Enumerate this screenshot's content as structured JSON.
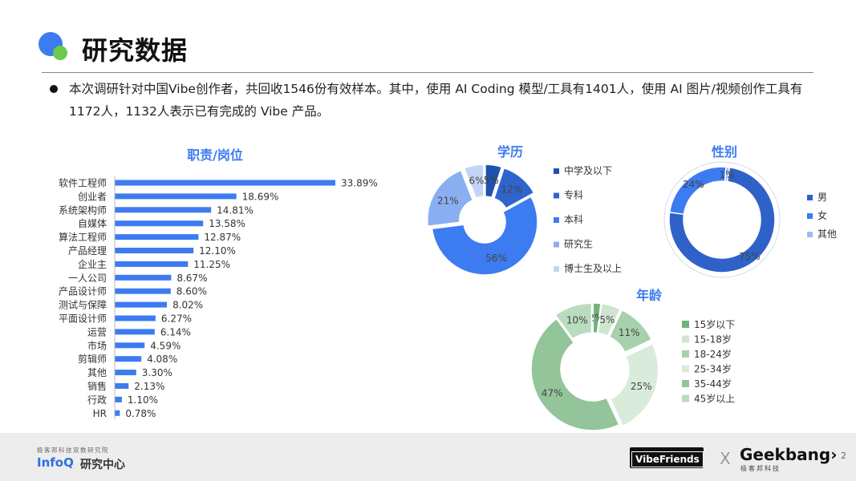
{
  "page": {
    "title": "研究数据",
    "summary": "本次调研针对中国Vibe创作者，共回收1546份有效样本。其中，使用 AI Coding 模型/工具有1401人，使用 AI 图片/视频创作工具有1172人，1132人表示已有完成的 Vibe 产品。",
    "page_number": "2"
  },
  "footer": {
    "infoq_tagline": "极客邦科技双数研究院",
    "infoq_brand": "InfoQ",
    "infoq_suffix": "研究中心",
    "vibe_badge": "VibeFriends",
    "x_mark": "X",
    "geekbang_brand": "Geekbang›",
    "geekbang_sub": "极客邦科技"
  },
  "colors": {
    "accent_blue": "#3d7bf0",
    "accent_green": "#6bc950"
  },
  "chart_data": [
    {
      "type": "bar",
      "title": "职责/岗位",
      "categories": [
        "软件工程师",
        "创业者",
        "系统架构师",
        "自媒体",
        "算法工程师",
        "产品经理",
        "企业主",
        "一人公司",
        "产品设计师",
        "测试与保障",
        "平面设计师",
        "运营",
        "市场",
        "剪辑师",
        "其他",
        "销售",
        "行政",
        "HR"
      ],
      "values": [
        33.89,
        18.69,
        14.81,
        13.58,
        12.87,
        12.1,
        11.25,
        8.67,
        8.6,
        8.02,
        6.27,
        6.14,
        4.59,
        4.08,
        3.3,
        2.13,
        1.1,
        0.78
      ],
      "data_labels": [
        "33.89%",
        "18.69%",
        "14.81%",
        "13.58%",
        "12.87%",
        "12.10%",
        "11.25%",
        "8.67%",
        "8.60%",
        "8.02%",
        "6.27%",
        "6.14%",
        "4.59%",
        "4.08%",
        "3.30%",
        "2.13%",
        "1.10%",
        "0.78%"
      ],
      "color": "#3d7bf0"
    },
    {
      "type": "pie",
      "title": "学历",
      "labels": [
        "中学及以下",
        "专科",
        "本科",
        "研究生",
        "博士生及以上"
      ],
      "values": [
        5,
        12,
        56,
        21,
        6
      ],
      "data_labels": [
        "5%",
        "12%",
        "56%",
        "21%",
        "6%"
      ],
      "colors": [
        "#1f52b0",
        "#2e64cc",
        "#3d7bf0",
        "#8aaef2",
        "#c3d4f7"
      ]
    },
    {
      "type": "pie",
      "title": "性别",
      "labels": [
        "男",
        "女",
        "其他"
      ],
      "values": [
        75,
        24,
        1
      ],
      "data_labels": [
        "75%",
        "24%",
        "1%"
      ],
      "colors": [
        "#2f62c8",
        "#3d7bf0",
        "#9dbaf4"
      ]
    },
    {
      "type": "pie",
      "title": "年龄",
      "labels": [
        "15岁以下",
        "15-18岁",
        "18-24岁",
        "25-34岁",
        "35-44岁",
        "45岁以上"
      ],
      "values": [
        2,
        5,
        11,
        25,
        47,
        10
      ],
      "data_labels": [
        "2%",
        "5%",
        "11%",
        "25%",
        "47%",
        "10%"
      ],
      "colors": [
        "#6fb27a",
        "#cfe5d2",
        "#a7d0ac",
        "#d9ebdb",
        "#94c49a",
        "#b9dcbe"
      ]
    }
  ]
}
